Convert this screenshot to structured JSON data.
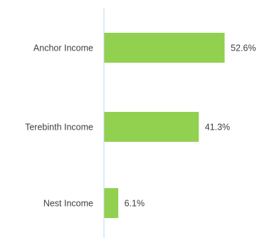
{
  "chart_data": {
    "type": "bar",
    "orientation": "horizontal",
    "categories": [
      "Anchor Income",
      "Terebinth Income",
      "Nest Income"
    ],
    "values": [
      52.6,
      41.3,
      6.1
    ],
    "value_labels": [
      "52.6%",
      "41.3%",
      "6.1%"
    ],
    "title": "",
    "xlabel": "",
    "ylabel": "",
    "grid": false,
    "legend": "none",
    "colors": {
      "bar": "#92d050",
      "axis": "#bdd7ee",
      "text": "#404040"
    }
  }
}
